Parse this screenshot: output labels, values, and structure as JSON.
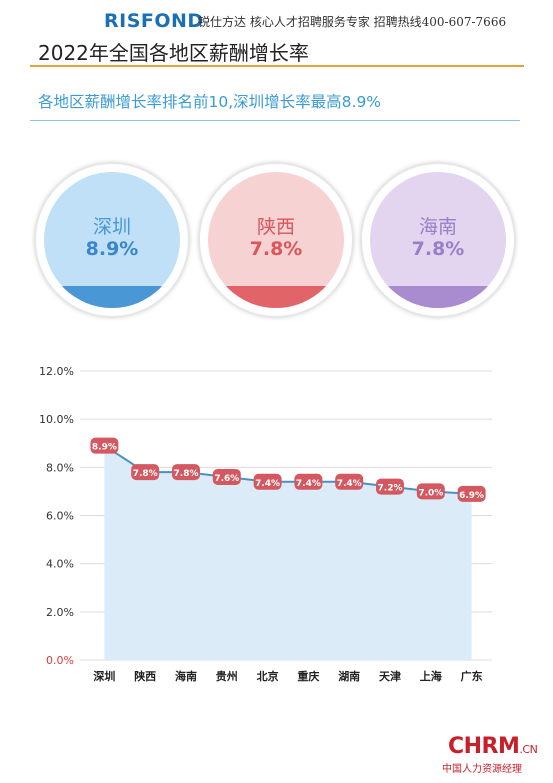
{
  "header": {
    "logo": "RISFOND",
    "tagline": "锐仕方达 核心人才招聘服务专家 招聘热线400-607-7666",
    "title": "2022年全国各地区薪酬增长率"
  },
  "subtitle": "各地区薪酬增长率排名前10,深圳增长率最高8.9%",
  "highlights": [
    {
      "name": "深圳",
      "value": "8.9%",
      "bg": "#bfe0f6",
      "band": "#4a97d6",
      "text": "#4a97d6",
      "value_color": "#3a86c8"
    },
    {
      "name": "陕西",
      "value": "7.8%",
      "bg": "#f7d2d2",
      "band": "#e06468",
      "text": "#d9565c",
      "value_color": "#d9565c"
    },
    {
      "name": "海南",
      "value": "7.8%",
      "bg": "#e3d4ef",
      "band": "#a98bcf",
      "text": "#9a7fc8",
      "value_color": "#9a7fc8"
    }
  ],
  "chart_data": {
    "type": "area",
    "categories": [
      "深圳",
      "陕西",
      "海南",
      "贵州",
      "北京",
      "重庆",
      "湖南",
      "天津",
      "上海",
      "广东"
    ],
    "values": [
      8.9,
      7.8,
      7.8,
      7.6,
      7.4,
      7.4,
      7.4,
      7.2,
      7.0,
      6.9
    ],
    "data_labels": [
      "8.9%",
      "7.8%",
      "7.8%",
      "7.6%",
      "7.4%",
      "7.4%",
      "7.4%",
      "7.2%",
      "7.0%",
      "6.9%"
    ],
    "ylim": [
      0,
      12
    ],
    "yticks": [
      "0.0%",
      "2.0%",
      "4.0%",
      "6.0%",
      "8.0%",
      "10.0%",
      "12.0%"
    ],
    "grid": true,
    "line_color": "#4a90c2",
    "area_color": "#dcebf8",
    "label_bg": "#d35860",
    "zero_tick_color": "#e03a3a"
  },
  "footer": {
    "brand": "CHRM",
    "brand_suffix": ".CN",
    "brand_sub": "中国人力资源经理"
  }
}
